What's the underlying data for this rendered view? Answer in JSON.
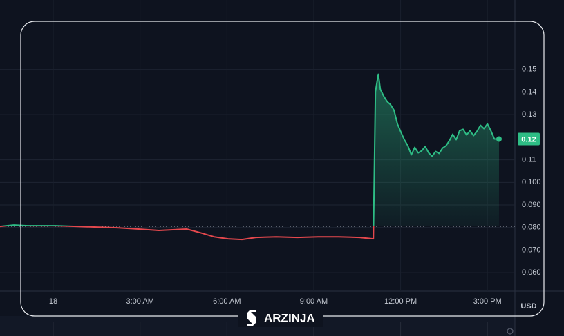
{
  "chart_data": {
    "type": "baseline-line",
    "x": [
      -1.84,
      -1.36,
      -0.88,
      0.07,
      0.79,
      1.5,
      2.22,
      2.94,
      3.65,
      4.13,
      4.61,
      5.09,
      5.56,
      6.04,
      6.52,
      7.0,
      7.71,
      8.43,
      9.15,
      9.86,
      10.58,
      11.06,
      11.13,
      11.23,
      11.3,
      11.42,
      11.54,
      11.65,
      11.77,
      11.89,
      12.01,
      12.13,
      12.25,
      12.37,
      12.49,
      12.61,
      12.73,
      12.85,
      12.97,
      13.09,
      13.21,
      13.33,
      13.45,
      13.57,
      13.69,
      13.8,
      13.92,
      14.04,
      14.16,
      14.28,
      14.4,
      14.52,
      14.64,
      14.76,
      14.88,
      15.0,
      15.12,
      15.24,
      15.4
    ],
    "values": [
      0.0805,
      0.0811,
      0.0808,
      0.0808,
      0.0805,
      0.0802,
      0.0799,
      0.0793,
      0.0787,
      0.079,
      0.0793,
      0.0777,
      0.0759,
      0.075,
      0.0747,
      0.0756,
      0.0759,
      0.0756,
      0.0759,
      0.0759,
      0.0756,
      0.075,
      0.1402,
      0.1479,
      0.1412,
      0.1381,
      0.1357,
      0.1345,
      0.132,
      0.1259,
      0.1223,
      0.1189,
      0.1162,
      0.1122,
      0.1155,
      0.1131,
      0.114,
      0.1159,
      0.1131,
      0.1116,
      0.1137,
      0.1128,
      0.1152,
      0.1162,
      0.1186,
      0.1213,
      0.1189,
      0.1229,
      0.1235,
      0.121,
      0.1229,
      0.1207,
      0.1226,
      0.1253,
      0.1238,
      0.1259,
      0.1229,
      0.1192,
      0.1192
    ],
    "last_value_label": "0.12",
    "baseline": 0.0805,
    "up_color": "#2ebd85",
    "down_color": "#e5484d",
    "xlim": [
      -1.84,
      15.95
    ],
    "xticks": [
      {
        "value": 0,
        "label": "18"
      },
      {
        "value": 3,
        "label": "3:00 AM"
      },
      {
        "value": 6,
        "label": "6:00 AM"
      },
      {
        "value": 9,
        "label": "9:00 AM"
      },
      {
        "value": 12,
        "label": "12:00 PM"
      },
      {
        "value": 15,
        "label": "3:00 PM"
      }
    ],
    "ylim": [
      0.0518,
      0.1594
    ],
    "yticks": [
      0.15,
      0.14,
      0.13,
      0.11,
      {
        "value": 0.1,
        "label": "0.100"
      },
      {
        "value": 0.09,
        "label": "0.090"
      },
      {
        "value": 0.08,
        "label": "0.080"
      },
      {
        "value": 0.07,
        "label": "0.070"
      },
      {
        "value": 0.06,
        "label": "0.060"
      }
    ],
    "y_unit": "USD",
    "grid": true
  },
  "watermark": "ARZINJA"
}
